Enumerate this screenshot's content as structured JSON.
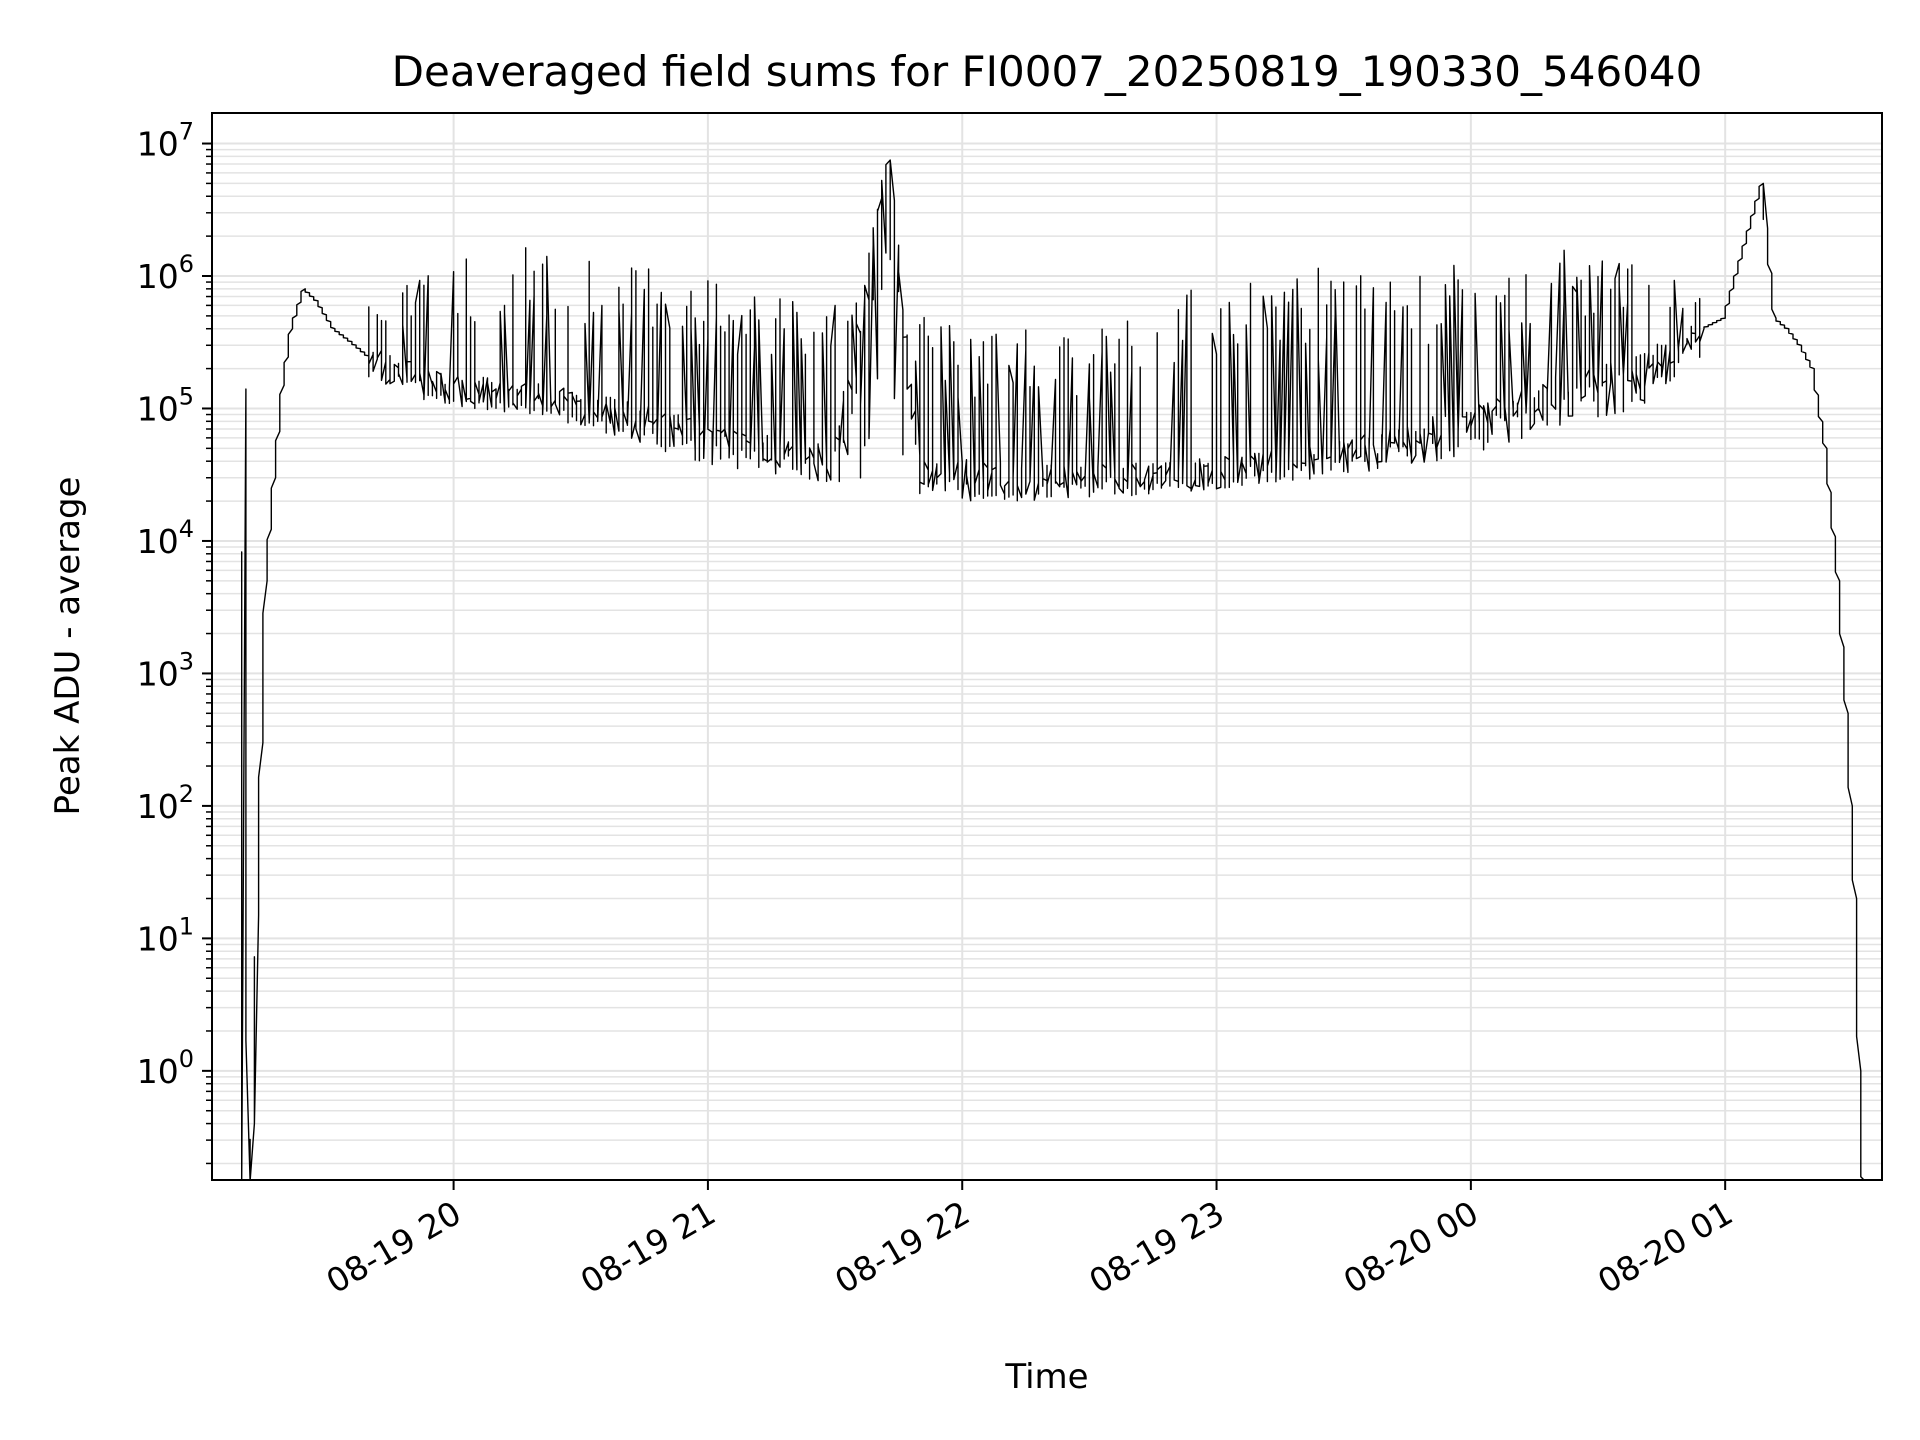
{
  "chart_data": {
    "type": "line",
    "title": "Deaveraged field sums for FI0007_20250819_190330_546040",
    "xlabel": "Time",
    "ylabel": "Peak ADU - average",
    "yscale": "log",
    "ylim": [
      0.15,
      17000000
    ],
    "xlim": [
      "2025-08-19 19:03",
      "2025-08-20 01:37"
    ],
    "grid": true,
    "grid_minor": true,
    "line_color": "#000000",
    "x_ticks": [
      {
        "t": "2025-08-19 20:00",
        "label": "08-19 20"
      },
      {
        "t": "2025-08-19 21:00",
        "label": "08-19 21"
      },
      {
        "t": "2025-08-19 22:00",
        "label": "08-19 22"
      },
      {
        "t": "2025-08-19 23:00",
        "label": "08-19 23"
      },
      {
        "t": "2025-08-20 00:00",
        "label": "08-20 00"
      },
      {
        "t": "2025-08-20 01:00",
        "label": "08-20 01"
      }
    ],
    "y_ticks": [
      {
        "value": 1,
        "base": "10",
        "exp": "0"
      },
      {
        "value": 10,
        "base": "10",
        "exp": "1"
      },
      {
        "value": 100,
        "base": "10",
        "exp": "2"
      },
      {
        "value": 1000,
        "base": "10",
        "exp": "3"
      },
      {
        "value": 10000,
        "base": "10",
        "exp": "4"
      },
      {
        "value": 100000,
        "base": "10",
        "exp": "5"
      },
      {
        "value": 1000000,
        "base": "10",
        "exp": "6"
      },
      {
        "value": 10000000,
        "base": "10",
        "exp": "7"
      }
    ],
    "series": [
      {
        "points": [
          [
            "2025-08-19 19:10",
            0.1
          ],
          [
            "2025-08-19 19:11",
            140000
          ],
          [
            "2025-08-19 19:12",
            0.1
          ],
          [
            "2025-08-19 19:13",
            0.4
          ],
          [
            "2025-08-19 19:14",
            15
          ],
          [
            "2025-08-19 19:15",
            300
          ],
          [
            "2025-08-19 19:16",
            5000
          ],
          [
            "2025-08-19 19:18",
            30000
          ],
          [
            "2025-08-19 19:20",
            150000
          ],
          [
            "2025-08-19 19:22",
            400000
          ],
          [
            "2025-08-19 19:25",
            800000
          ],
          [
            "2025-08-19 19:28",
            650000
          ],
          [
            "2025-08-19 19:32",
            400000
          ],
          [
            "2025-08-19 19:36",
            320000
          ],
          [
            "2025-08-19 19:40",
            250000
          ],
          [
            "2025-08-19 19:45",
            200000
          ],
          [
            "2025-08-19 19:50",
            180000
          ],
          [
            "2025-08-19 19:55",
            150000
          ],
          [
            "2025-08-19 20:00",
            140000
          ],
          [
            "2025-08-19 20:10",
            130000
          ],
          [
            "2025-08-19 20:20",
            120000
          ],
          [
            "2025-08-19 20:30",
            105000
          ],
          [
            "2025-08-19 20:40",
            90000
          ],
          [
            "2025-08-19 20:50",
            75000
          ],
          [
            "2025-08-19 21:00",
            62000
          ],
          [
            "2025-08-19 21:10",
            52000
          ],
          [
            "2025-08-19 21:20",
            45000
          ],
          [
            "2025-08-19 21:30",
            42000
          ],
          [
            "2025-08-19 21:43",
            7500000
          ],
          [
            "2025-08-19 21:50",
            35000
          ],
          [
            "2025-08-19 22:00",
            32000
          ],
          [
            "2025-08-19 22:10",
            30000
          ],
          [
            "2025-08-19 22:20",
            29000
          ],
          [
            "2025-08-19 22:30",
            29000
          ],
          [
            "2025-08-19 22:40",
            30000
          ],
          [
            "2025-08-19 22:50",
            31000
          ],
          [
            "2025-08-19 23:00",
            33000
          ],
          [
            "2025-08-19 23:10",
            36000
          ],
          [
            "2025-08-19 23:20",
            41000
          ],
          [
            "2025-08-19 23:30",
            48000
          ],
          [
            "2025-08-19 23:40",
            55000
          ],
          [
            "2025-08-19 23:50",
            65000
          ],
          [
            "2025-08-20 00:00",
            80000
          ],
          [
            "2025-08-20 00:10",
            100000
          ],
          [
            "2025-08-20 00:20",
            130000
          ],
          [
            "2025-08-20 00:30",
            160000
          ],
          [
            "2025-08-20 00:40",
            200000
          ],
          [
            "2025-08-20 00:50",
            300000
          ],
          [
            "2025-08-20 00:55",
            400000
          ],
          [
            "2025-08-20 01:00",
            480000
          ],
          [
            "2025-08-20 01:09",
            5000000
          ],
          [
            "2025-08-20 01:12",
            480000
          ],
          [
            "2025-08-20 01:15",
            400000
          ],
          [
            "2025-08-20 01:18",
            300000
          ],
          [
            "2025-08-20 01:21",
            200000
          ],
          [
            "2025-08-20 01:24",
            50000
          ],
          [
            "2025-08-20 01:27",
            5000
          ],
          [
            "2025-08-20 01:29",
            500
          ],
          [
            "2025-08-20 01:31",
            20
          ],
          [
            "2025-08-20 01:32",
            1
          ],
          [
            "2025-08-20 01:33",
            0.1
          ]
        ],
        "upper_envelope": [
          [
            "2025-08-19 19:40",
            600000
          ],
          [
            "2025-08-19 20:00",
            1400000
          ],
          [
            "2025-08-19 20:20",
            1800000
          ],
          [
            "2025-08-19 20:40",
            1500000
          ],
          [
            "2025-08-19 21:00",
            1000000
          ],
          [
            "2025-08-19 21:20",
            800000
          ],
          [
            "2025-08-19 21:40",
            600000
          ],
          [
            "2025-08-19 22:00",
            450000
          ],
          [
            "2025-08-19 22:20",
            400000
          ],
          [
            "2025-08-19 22:40",
            500000
          ],
          [
            "2025-08-19 23:00",
            1200000
          ],
          [
            "2025-08-19 23:20",
            1200000
          ],
          [
            "2025-08-19 23:40",
            1000000
          ],
          [
            "2025-08-20 00:00",
            1400000
          ],
          [
            "2025-08-20 00:20",
            1600000
          ],
          [
            "2025-08-20 00:40",
            1400000
          ],
          [
            "2025-08-20 00:55",
            800000
          ]
        ],
        "lower_envelope": [
          [
            "2025-08-19 19:40",
            160000
          ],
          [
            "2025-08-19 20:00",
            100000
          ],
          [
            "2025-08-19 20:20",
            90000
          ],
          [
            "2025-08-19 20:40",
            60000
          ],
          [
            "2025-08-19 21:00",
            38000
          ],
          [
            "2025-08-19 21:20",
            30000
          ],
          [
            "2025-08-19 21:40",
            25000
          ],
          [
            "2025-08-19 22:00",
            20000
          ],
          [
            "2025-08-19 22:20",
            20000
          ],
          [
            "2025-08-19 22:40",
            22000
          ],
          [
            "2025-08-19 23:00",
            24000
          ],
          [
            "2025-08-19 23:20",
            28000
          ],
          [
            "2025-08-19 23:40",
            32000
          ],
          [
            "2025-08-20 00:00",
            45000
          ],
          [
            "2025-08-20 00:20",
            70000
          ],
          [
            "2025-08-20 00:40",
            100000
          ],
          [
            "2025-08-20 00:55",
            250000
          ]
        ]
      }
    ]
  }
}
